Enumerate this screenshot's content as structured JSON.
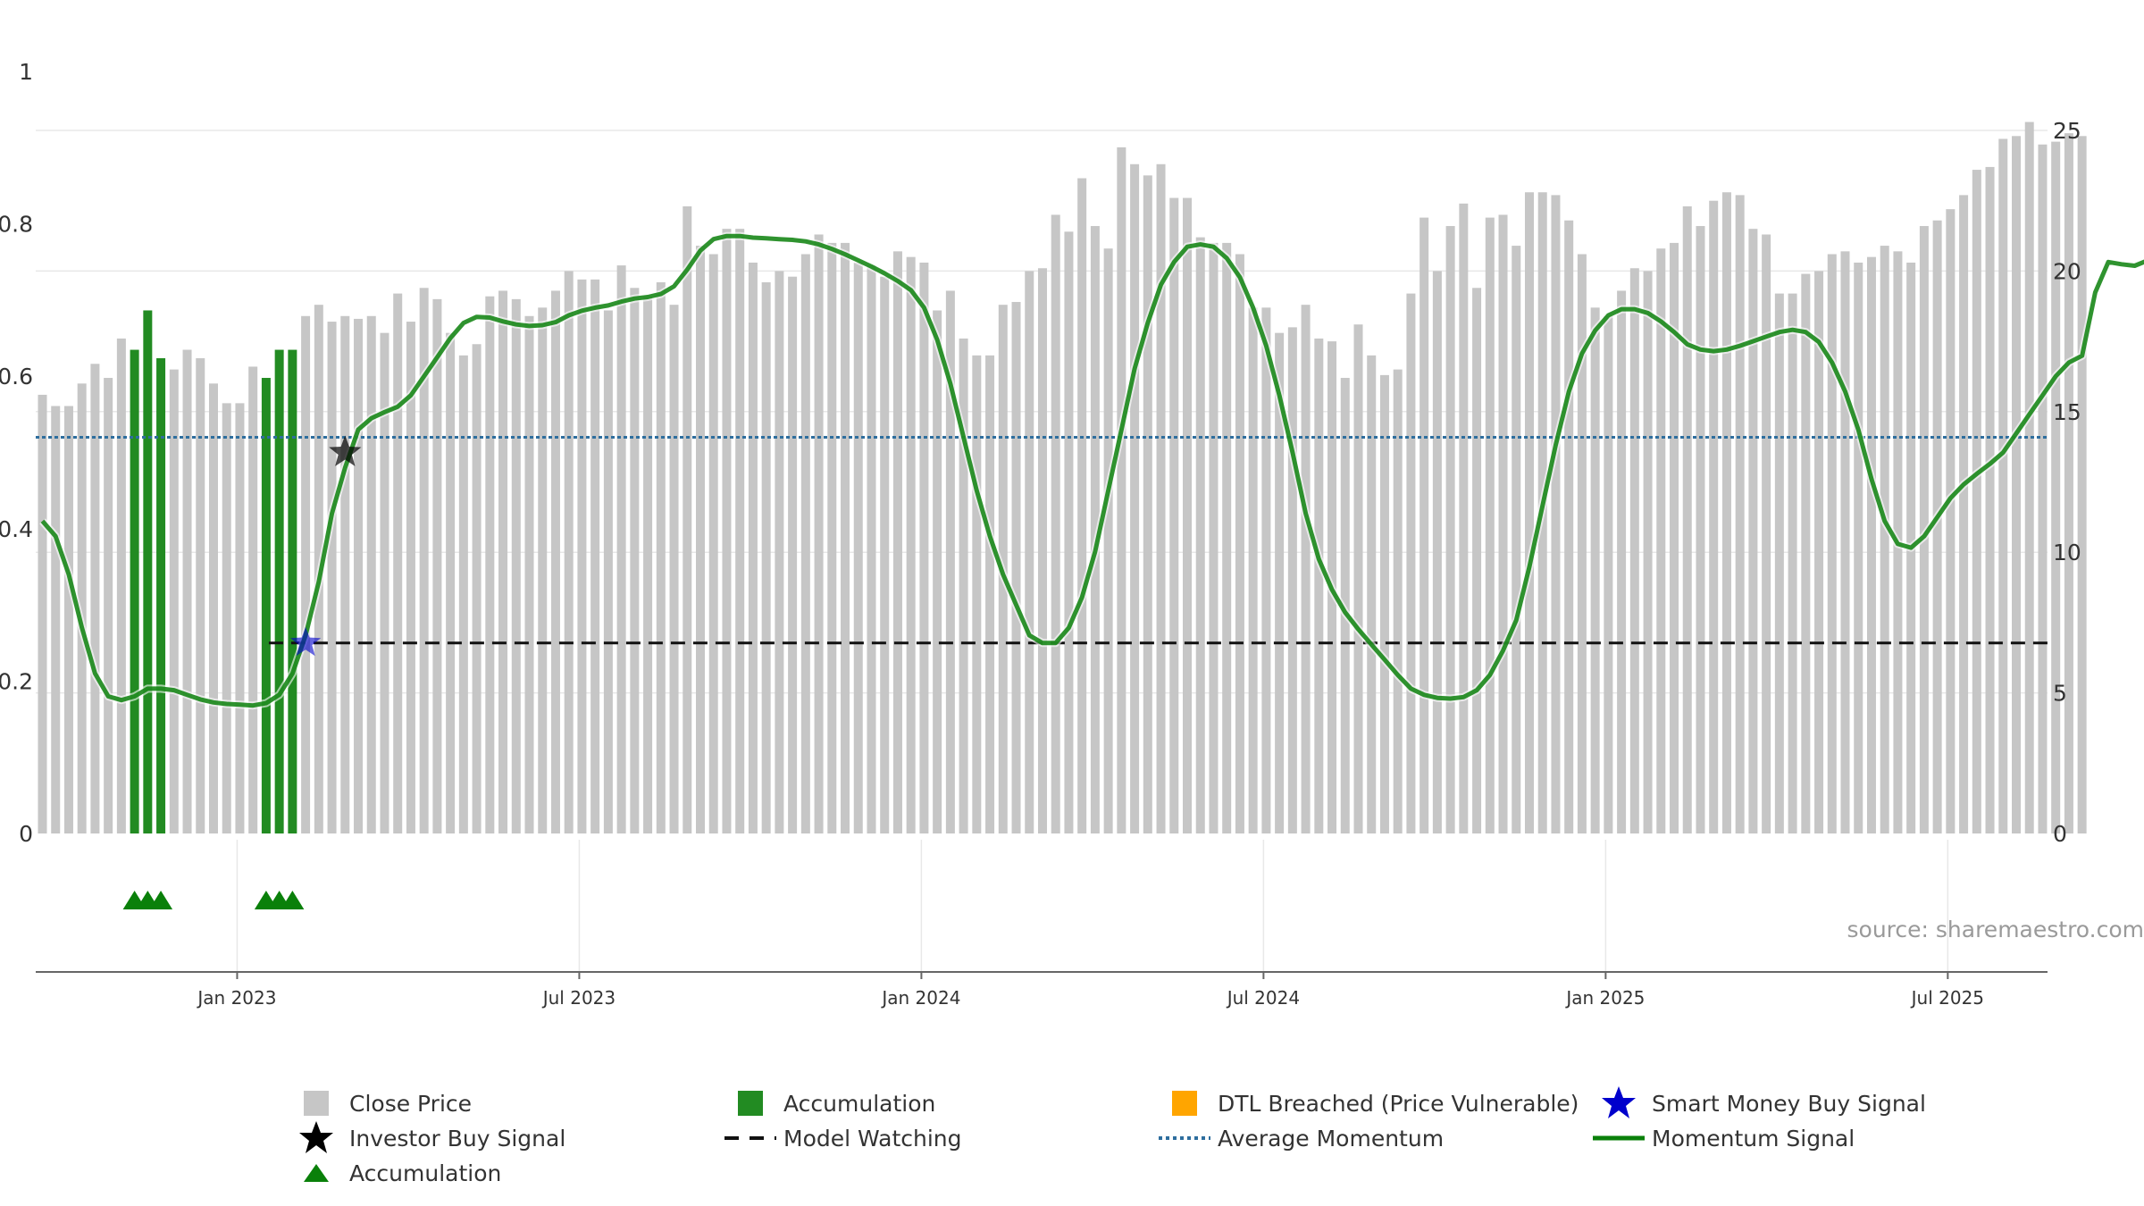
{
  "chart_data": {
    "type": "bar",
    "title": "",
    "source": "source: sharemaestro.com",
    "left_axis": {
      "range": [
        0,
        1
      ],
      "ticks": [
        "0",
        "0.2",
        "0.4",
        "0.6",
        "0.8",
        "1"
      ]
    },
    "right_axis": {
      "range": [
        0,
        25
      ],
      "ticks": [
        "0",
        "5",
        "10",
        "15",
        "20",
        "25"
      ]
    },
    "x_ticks": [
      "Jan 2023",
      "Jul 2023",
      "Jan 2024",
      "Jul 2024",
      "Jan 2025",
      "Jul 2025"
    ],
    "x_tick_weeks": [
      15,
      41,
      67,
      93,
      119,
      145
    ],
    "close_price": [
      15.6,
      15.2,
      15.2,
      16.0,
      16.7,
      16.2,
      17.6,
      17.2,
      18.6,
      16.9,
      16.5,
      17.2,
      16.9,
      16.0,
      15.3,
      15.3,
      16.6,
      16.2,
      17.2,
      17.2,
      18.4,
      18.8,
      18.2,
      18.4,
      18.3,
      18.4,
      17.8,
      19.2,
      18.2,
      19.4,
      19.0,
      17.8,
      17.0,
      17.4,
      19.1,
      19.3,
      19.0,
      18.4,
      18.7,
      19.3,
      20.0,
      19.7,
      19.7,
      18.6,
      20.2,
      19.4,
      19.1,
      19.6,
      18.8,
      22.3,
      20.9,
      20.6,
      21.5,
      21.5,
      20.3,
      19.6,
      20.0,
      19.8,
      20.6,
      21.3,
      21.0,
      21.0,
      20.3,
      20.2,
      19.8,
      20.7,
      20.5,
      20.3,
      18.6,
      19.3,
      17.6,
      17.0,
      17.0,
      18.8,
      18.9,
      20.0,
      20.1,
      22.0,
      21.4,
      23.3,
      21.6,
      20.8,
      24.4,
      23.8,
      23.4,
      23.8,
      22.6,
      22.6,
      21.2,
      21.0,
      21.0,
      20.6,
      18.7,
      18.7,
      17.8,
      18.0,
      18.8,
      17.6,
      17.5,
      16.2,
      18.1,
      17.0,
      16.3,
      16.5,
      19.2,
      21.9,
      20.0,
      21.6,
      22.4,
      19.4,
      21.9,
      22.0,
      20.9,
      22.8,
      22.8,
      22.7,
      21.8,
      20.6,
      18.7,
      18.4,
      19.3,
      20.1,
      20.0,
      20.8,
      21.0,
      22.3,
      21.6,
      22.5,
      22.8,
      22.7,
      21.5,
      21.3,
      19.2,
      19.2,
      19.9,
      20.0,
      20.6,
      20.7,
      20.3,
      20.5,
      20.9,
      20.7,
      20.3,
      21.6,
      21.8,
      22.2,
      22.7,
      23.6,
      23.7,
      24.7,
      24.8,
      25.3,
      24.5,
      24.6,
      24.9,
      24.8
    ],
    "accumulation_weeks": [
      7,
      8,
      9,
      17,
      18,
      19
    ],
    "accumulation_marker_weeks": [
      7,
      8,
      9,
      17,
      18,
      19
    ],
    "momentum_signal": [
      0.41,
      0.39,
      0.34,
      0.27,
      0.21,
      0.18,
      0.175,
      0.18,
      0.19,
      0.19,
      0.188,
      0.182,
      0.176,
      0.172,
      0.17,
      0.169,
      0.168,
      0.171,
      0.182,
      0.21,
      0.26,
      0.33,
      0.42,
      0.48,
      0.53,
      0.545,
      0.553,
      0.56,
      0.575,
      0.6,
      0.625,
      0.65,
      0.67,
      0.678,
      0.677,
      0.672,
      0.668,
      0.666,
      0.667,
      0.671,
      0.68,
      0.686,
      0.69,
      0.693,
      0.698,
      0.702,
      0.704,
      0.708,
      0.718,
      0.74,
      0.765,
      0.78,
      0.784,
      0.784,
      0.782,
      0.781,
      0.78,
      0.779,
      0.777,
      0.773,
      0.767,
      0.76,
      0.752,
      0.744,
      0.735,
      0.725,
      0.713,
      0.69,
      0.648,
      0.59,
      0.52,
      0.45,
      0.39,
      0.34,
      0.3,
      0.26,
      0.25,
      0.25,
      0.27,
      0.31,
      0.37,
      0.45,
      0.53,
      0.61,
      0.67,
      0.72,
      0.75,
      0.77,
      0.773,
      0.77,
      0.755,
      0.73,
      0.69,
      0.64,
      0.575,
      0.5,
      0.42,
      0.36,
      0.32,
      0.29,
      0.268,
      0.248,
      0.228,
      0.208,
      0.19,
      0.182,
      0.178,
      0.177,
      0.179,
      0.188,
      0.208,
      0.24,
      0.28,
      0.35,
      0.43,
      0.51,
      0.58,
      0.63,
      0.66,
      0.68,
      0.688,
      0.688,
      0.683,
      0.672,
      0.658,
      0.642,
      0.635,
      0.633,
      0.635,
      0.64,
      0.646,
      0.652,
      0.658,
      0.661,
      0.658,
      0.645,
      0.618,
      0.58,
      0.53,
      0.465,
      0.41,
      0.38,
      0.375,
      0.39,
      0.415,
      0.44,
      0.458,
      0.472,
      0.485,
      0.5,
      0.525,
      0.55,
      0.575,
      0.6,
      0.618,
      0.627,
      0.71,
      0.75,
      0.747,
      0.745,
      0.752
    ],
    "average_momentum": 0.52,
    "model_watching": {
      "value": 0.25,
      "start_week": 17
    },
    "investor_buy_signal": {
      "week": 23,
      "value": 0.5
    },
    "smart_money_buy_signal": {
      "week": 20,
      "value": 0.25
    },
    "colors": {
      "close_price": "#c6c6c6",
      "accumulation": "#228b22",
      "dtl_breached": "#ffa500",
      "momentum": "#0a800a",
      "average_momentum": "#2e6e9e",
      "model_watching": "#111111",
      "smart_money": "#0000cc",
      "investor": "#000000"
    }
  },
  "legend": {
    "close_price": "Close Price",
    "accumulation_bar": "Accumulation",
    "dtl_breached": "DTL Breached (Price Vulnerable)",
    "smart_money": "Smart Money Buy Signal",
    "investor_buy": "Investor Buy Signal",
    "model_watching": "Model Watching",
    "average_momentum": "Average Momentum",
    "momentum_signal": "Momentum Signal",
    "accumulation_marker": "Accumulation"
  }
}
